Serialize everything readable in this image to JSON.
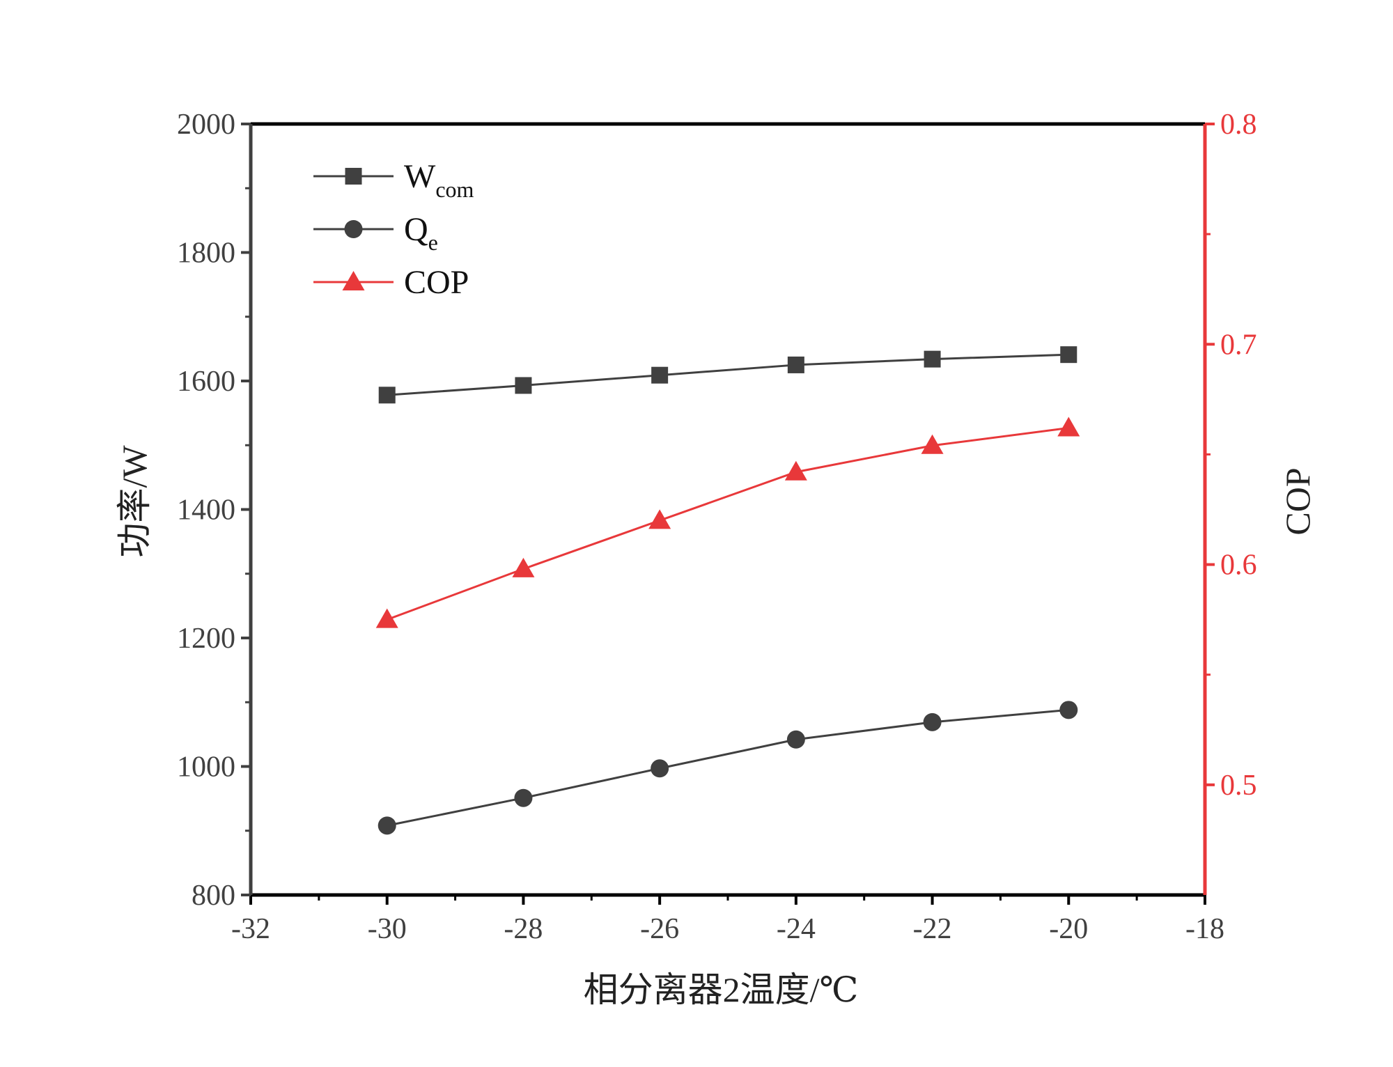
{
  "colors": {
    "black_series": "#404040",
    "cop_series": "#e8383a",
    "axis": "#000000",
    "right_axis": "#e8383a"
  },
  "chart_data": {
    "type": "line",
    "xlabel": "相分离器2温度/℃",
    "ylabel_left": "功率/W",
    "ylabel_right": "COP",
    "xlim": [
      -32,
      -18
    ],
    "ylim_left": [
      800,
      2000
    ],
    "ylim_right": [
      0.45,
      0.8
    ],
    "x_ticks": [
      "-32",
      "-30",
      "-28",
      "-26",
      "-24",
      "-22",
      "-20",
      "-18"
    ],
    "y_left_ticks": [
      "800",
      "1000",
      "1200",
      "1400",
      "1600",
      "1800",
      "2000"
    ],
    "y_right_ticks": [
      "0.5",
      "0.6",
      "0.7",
      "0.8"
    ],
    "grid": false,
    "legend_position": "top-left",
    "x": [
      -30,
      -28,
      -26,
      -24,
      -22,
      -20
    ],
    "series": [
      {
        "name": "W",
        "name_sub": "com",
        "axis": "left",
        "marker": "square",
        "values": [
          1578,
          1593,
          1609,
          1625,
          1634,
          1641
        ]
      },
      {
        "name": "Q",
        "name_sub": "e",
        "axis": "left",
        "marker": "circle",
        "values": [
          908,
          951,
          997,
          1042,
          1069,
          1088
        ]
      },
      {
        "name": "COP",
        "name_sub": "",
        "axis": "right",
        "marker": "triangle",
        "values": [
          0.575,
          0.598,
          0.62,
          0.642,
          0.654,
          0.662
        ]
      }
    ]
  }
}
